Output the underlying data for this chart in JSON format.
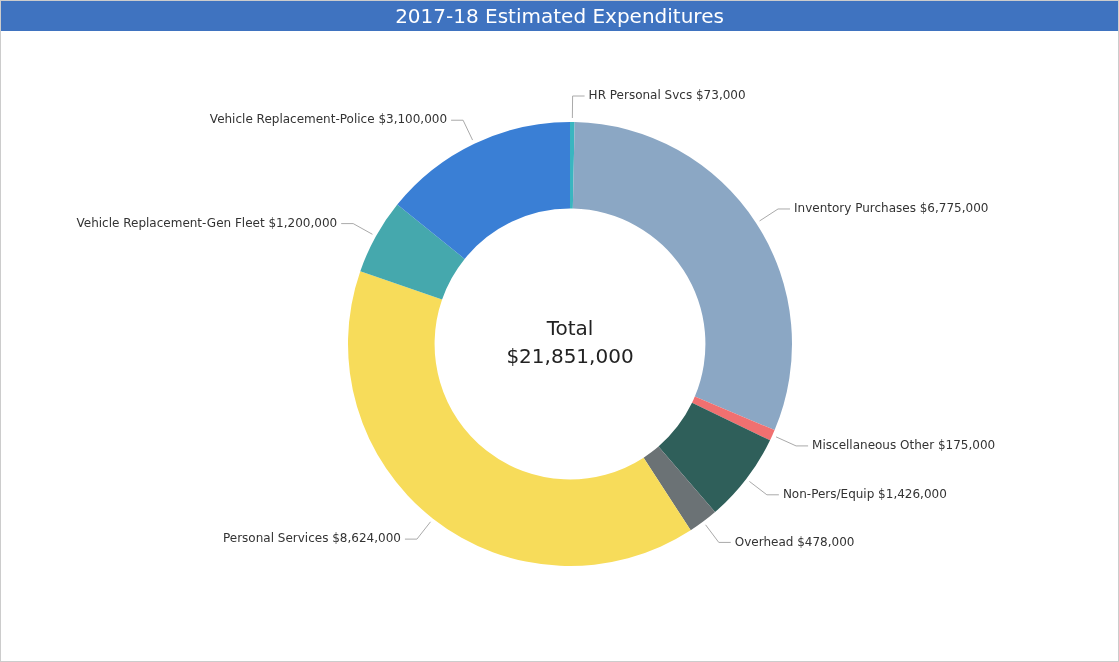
{
  "chart_data": {
    "type": "donut",
    "title": "2017-18 Estimated Expenditures",
    "categories": [
      "HR Personal Svcs",
      "Inventory Purchases",
      "Miscellaneous Other",
      "Non-Pers/Equip",
      "Overhead",
      "Personal Services",
      "Vehicle Replacement-Gen Fleet",
      "Vehicle Replacement-Police"
    ],
    "values": [
      73000,
      6775000,
      175000,
      1426000,
      478000,
      8624000,
      1200000,
      3100000
    ],
    "value_labels": [
      "$73,000",
      "$6,775,000",
      "$175,000",
      "$1,426,000",
      "$478,000",
      "$8,624,000",
      "$1,200,000",
      "$3,100,000"
    ],
    "colors": [
      "#3ab5c0",
      "#8ba7c4",
      "#f07070",
      "#2f5f5a",
      "#6b7275",
      "#f7dc5a",
      "#45a8ad",
      "#3a7fd5"
    ],
    "annotations": [
      "Total",
      "$21,851,000"
    ],
    "legend": false
  }
}
